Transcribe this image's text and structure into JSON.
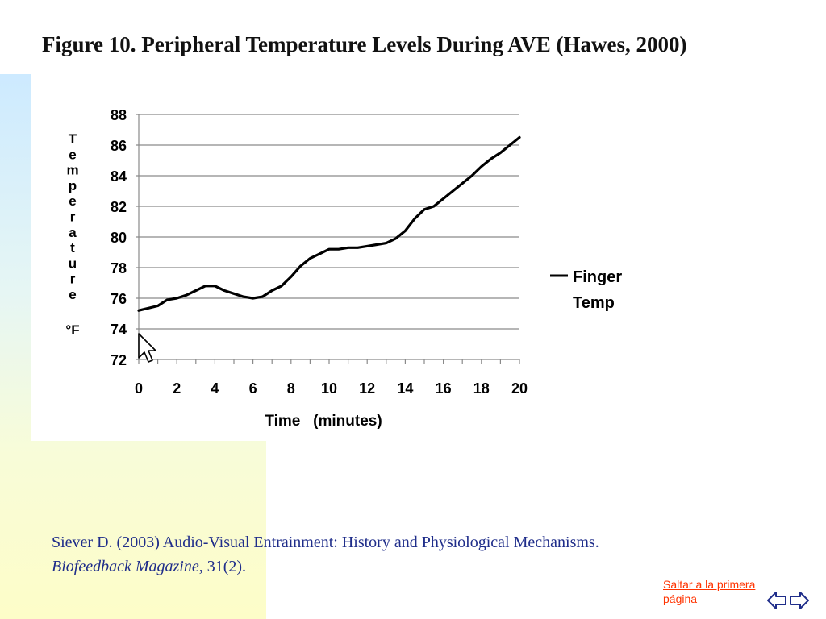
{
  "figure_title": "Figure 10.  Peripheral Temperature Levels During AVE (Hawes, 2000)",
  "chart_data": {
    "type": "line",
    "title": "Figure 10.  Peripheral Temperature Levels During AVE (Hawes, 2000)",
    "xlabel": "Time   (minutes)",
    "ylabel_letters": [
      "T",
      "e",
      "m",
      "p",
      "e",
      "r",
      "a",
      "t",
      "u",
      "r",
      "e"
    ],
    "ylabel_unit": "°F",
    "xlim": [
      0,
      20
    ],
    "ylim": [
      72,
      88
    ],
    "x_ticks": [
      0,
      2,
      4,
      6,
      8,
      10,
      12,
      14,
      16,
      18,
      20
    ],
    "y_ticks": [
      72,
      74,
      76,
      78,
      80,
      82,
      84,
      86,
      88
    ],
    "grid": "horizontal",
    "legend_position": "right",
    "legend_lines": [
      "Finger",
      "Temp"
    ],
    "series": [
      {
        "name": "Finger Temp",
        "color": "#000000",
        "x": [
          0,
          1,
          1.5,
          2,
          2.5,
          3,
          3.5,
          4,
          4.5,
          5,
          5.5,
          6,
          6.5,
          7,
          7.5,
          8,
          8.5,
          9,
          9.5,
          10,
          10.5,
          11,
          11.5,
          12,
          12.5,
          13,
          13.5,
          14,
          14.5,
          15,
          15.5,
          16,
          16.5,
          17,
          17.5,
          18,
          18.5,
          19,
          19.5,
          20
        ],
        "y": [
          75.2,
          75.5,
          75.9,
          76.0,
          76.2,
          76.5,
          76.8,
          76.8,
          76.5,
          76.3,
          76.1,
          76.0,
          76.1,
          76.5,
          76.8,
          77.4,
          78.1,
          78.6,
          78.9,
          79.2,
          79.2,
          79.3,
          79.3,
          79.4,
          79.5,
          79.6,
          79.9,
          80.4,
          81.2,
          81.8,
          82.0,
          82.5,
          83.0,
          83.5,
          84.0,
          84.6,
          85.1,
          85.5,
          86.0,
          86.5
        ]
      }
    ]
  },
  "citation": {
    "line1": "Siever D. (2003) Audio-Visual Entrainment: History and Physiological Mechanisms.",
    "journal": "Biofeedback Magazine",
    "rest": ", 31(2)."
  },
  "nav": {
    "link_text": "Saltar a la primera página",
    "back_icon": "arrow-left-outline-icon",
    "forward_icon": "arrow-right-outline-icon"
  }
}
